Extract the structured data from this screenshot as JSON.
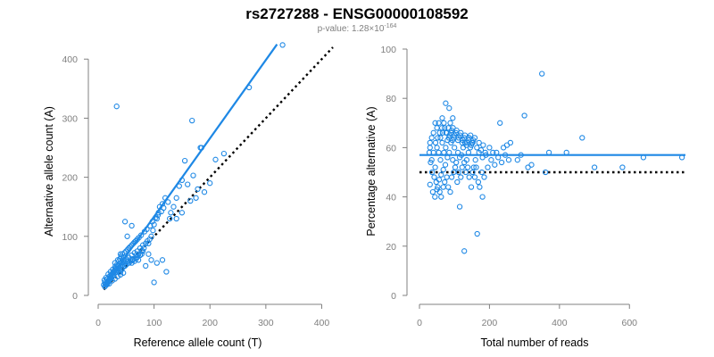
{
  "header": {
    "title": "rs2727288 - ENSG00000108592",
    "pvalue_prefix": "p-value: 1.28×10",
    "pvalue_exponent": "-164"
  },
  "chart_data": [
    {
      "id": "allele-counts",
      "type": "scatter",
      "xlabel": "Reference allele count (T)",
      "ylabel": "Alternative allele count (A)",
      "xlim": [
        0,
        420
      ],
      "ylim": [
        0,
        420
      ],
      "xticks": [
        "0",
        "100",
        "200",
        "300",
        "400"
      ],
      "yticks": [
        "0",
        "100",
        "200",
        "300",
        "400"
      ],
      "color": "#1e88e5",
      "fit_line": {
        "from": [
          10,
          14
        ],
        "to": [
          320,
          425
        ]
      },
      "reference_line": {
        "from": [
          10,
          10
        ],
        "to": [
          420,
          420
        ]
      },
      "points": [
        [
          33,
          320
        ],
        [
          168,
          296
        ],
        [
          270,
          352
        ],
        [
          330,
          424
        ],
        [
          183,
          250
        ],
        [
          185,
          250
        ],
        [
          155,
          228
        ],
        [
          170,
          203
        ],
        [
          160,
          188
        ],
        [
          178,
          180
        ],
        [
          150,
          195
        ],
        [
          145,
          185
        ],
        [
          140,
          165
        ],
        [
          135,
          150
        ],
        [
          130,
          140
        ],
        [
          128,
          130
        ],
        [
          120,
          165
        ],
        [
          115,
          155
        ],
        [
          110,
          150
        ],
        [
          108,
          140
        ],
        [
          105,
          130
        ],
        [
          100,
          120
        ],
        [
          98,
          110
        ],
        [
          95,
          100
        ],
        [
          92,
          95
        ],
        [
          90,
          88
        ],
        [
          88,
          92
        ],
        [
          85,
          88
        ],
        [
          82,
          80
        ],
        [
          80,
          85
        ],
        [
          78,
          76
        ],
        [
          75,
          80
        ],
        [
          72,
          70
        ],
        [
          70,
          75
        ],
        [
          68,
          68
        ],
        [
          65,
          72
        ],
        [
          62,
          62
        ],
        [
          60,
          68
        ],
        [
          58,
          60
        ],
        [
          55,
          64
        ],
        [
          52,
          58
        ],
        [
          50,
          62
        ],
        [
          48,
          55
        ],
        [
          46,
          60
        ],
        [
          44,
          52
        ],
        [
          42,
          56
        ],
        [
          40,
          50
        ],
        [
          38,
          54
        ],
        [
          36,
          46
        ],
        [
          34,
          50
        ],
        [
          32,
          44
        ],
        [
          30,
          48
        ],
        [
          28,
          40
        ],
        [
          26,
          44
        ],
        [
          24,
          36
        ],
        [
          22,
          40
        ],
        [
          20,
          32
        ],
        [
          18,
          36
        ],
        [
          16,
          28
        ],
        [
          14,
          30
        ],
        [
          12,
          22
        ],
        [
          11,
          26
        ],
        [
          10,
          18
        ],
        [
          12,
          15
        ],
        [
          14,
          18
        ],
        [
          16,
          20
        ],
        [
          18,
          22
        ],
        [
          20,
          25
        ],
        [
          22,
          28
        ],
        [
          24,
          30
        ],
        [
          26,
          33
        ],
        [
          28,
          35
        ],
        [
          30,
          38
        ],
        [
          32,
          40
        ],
        [
          35,
          42
        ],
        [
          38,
          45
        ],
        [
          40,
          40
        ],
        [
          42,
          44
        ],
        [
          45,
          48
        ],
        [
          48,
          50
        ],
        [
          50,
          52
        ],
        [
          55,
          55
        ],
        [
          58,
          58
        ],
        [
          60,
          55
        ],
        [
          62,
          60
        ],
        [
          65,
          58
        ],
        [
          68,
          62
        ],
        [
          70,
          65
        ],
        [
          72,
          60
        ],
        [
          75,
          68
        ],
        [
          78,
          70
        ],
        [
          80,
          75
        ],
        [
          45,
          65
        ],
        [
          50,
          75
        ],
        [
          55,
          80
        ],
        [
          60,
          85
        ],
        [
          65,
          90
        ],
        [
          70,
          95
        ],
        [
          35,
          60
        ],
        [
          40,
          70
        ],
        [
          30,
          55
        ],
        [
          48,
          125
        ],
        [
          60,
          118
        ],
        [
          52,
          100
        ],
        [
          100,
          22
        ],
        [
          122,
          40
        ],
        [
          105,
          55
        ],
        [
          115,
          60
        ],
        [
          95,
          60
        ],
        [
          90,
          70
        ],
        [
          85,
          50
        ],
        [
          25,
          25
        ],
        [
          30,
          28
        ],
        [
          35,
          32
        ],
        [
          40,
          35
        ],
        [
          45,
          38
        ],
        [
          20,
          20
        ],
        [
          15,
          18
        ],
        [
          13,
          20
        ],
        [
          17,
          24
        ],
        [
          19,
          26
        ],
        [
          21,
          30
        ],
        [
          23,
          34
        ],
        [
          27,
          38
        ],
        [
          29,
          42
        ],
        [
          31,
          46
        ],
        [
          33,
          52
        ],
        [
          37,
          58
        ],
        [
          39,
          62
        ],
        [
          41,
          66
        ],
        [
          43,
          70
        ],
        [
          47,
          72
        ],
        [
          53,
          78
        ],
        [
          57,
          82
        ],
        [
          63,
          88
        ],
        [
          67,
          92
        ],
        [
          73,
          98
        ],
        [
          77,
          102
        ],
        [
          83,
          108
        ],
        [
          87,
          112
        ],
        [
          93,
          118
        ],
        [
          97,
          125
        ],
        [
          103,
          132
        ],
        [
          107,
          136
        ],
        [
          113,
          142
        ],
        [
          117,
          148
        ],
        [
          125,
          158
        ],
        [
          210,
          230
        ],
        [
          225,
          240
        ],
        [
          200,
          190
        ],
        [
          190,
          175
        ],
        [
          175,
          165
        ],
        [
          165,
          160
        ],
        [
          150,
          140
        ],
        [
          140,
          130
        ]
      ]
    },
    {
      "id": "percentage",
      "type": "scatter",
      "xlabel": "Total number of reads",
      "ylabel": "Percentage alternative (A)",
      "xlim": [
        0,
        760
      ],
      "ylim": [
        0,
        100
      ],
      "xticks": [
        "0",
        "200",
        "400",
        "600"
      ],
      "yticks": [
        "0",
        "20",
        "40",
        "60",
        "80",
        "100"
      ],
      "color": "#1e88e5",
      "fit_line": {
        "from": [
          0,
          57
        ],
        "to": [
          760,
          57
        ]
      },
      "reference_line": {
        "from": [
          0,
          50
        ],
        "to": [
          760,
          50
        ]
      },
      "points": [
        [
          350,
          90
        ],
        [
          128,
          18
        ],
        [
          165,
          25
        ],
        [
          115,
          36
        ],
        [
          180,
          40
        ],
        [
          300,
          73
        ],
        [
          230,
          70
        ],
        [
          370,
          58
        ],
        [
          465,
          64
        ],
        [
          750,
          56
        ],
        [
          640,
          56
        ],
        [
          580,
          52
        ],
        [
          500,
          52
        ],
        [
          420,
          58
        ],
        [
          360,
          50
        ],
        [
          320,
          53
        ],
        [
          310,
          52
        ],
        [
          290,
          57
        ],
        [
          280,
          55
        ],
        [
          260,
          62
        ],
        [
          250,
          61
        ],
        [
          240,
          60
        ],
        [
          220,
          58
        ],
        [
          210,
          58
        ],
        [
          200,
          60
        ],
        [
          190,
          57
        ],
        [
          180,
          56
        ],
        [
          170,
          58
        ],
        [
          160,
          55
        ],
        [
          155,
          52
        ],
        [
          150,
          62
        ],
        [
          145,
          60
        ],
        [
          140,
          58
        ],
        [
          135,
          55
        ],
        [
          130,
          62
        ],
        [
          125,
          60
        ],
        [
          120,
          57
        ],
        [
          115,
          56
        ],
        [
          110,
          58
        ],
        [
          105,
          54
        ],
        [
          100,
          60
        ],
        [
          95,
          55
        ],
        [
          90,
          62
        ],
        [
          85,
          58
        ],
        [
          80,
          56
        ],
        [
          75,
          60
        ],
        [
          70,
          58
        ],
        [
          65,
          62
        ],
        [
          60,
          55
        ],
        [
          55,
          58
        ],
        [
          50,
          60
        ],
        [
          45,
          52
        ],
        [
          40,
          58
        ],
        [
          35,
          55
        ],
        [
          30,
          60
        ],
        [
          75,
          78
        ],
        [
          85,
          76
        ],
        [
          95,
          72
        ],
        [
          65,
          72
        ],
        [
          55,
          70
        ],
        [
          50,
          68
        ],
        [
          45,
          70
        ],
        [
          40,
          66
        ],
        [
          35,
          64
        ],
        [
          30,
          62
        ],
        [
          28,
          58
        ],
        [
          32,
          54
        ],
        [
          36,
          50
        ],
        [
          42,
          48
        ],
        [
          48,
          46
        ],
        [
          52,
          44
        ],
        [
          58,
          42
        ],
        [
          62,
          40
        ],
        [
          68,
          44
        ],
        [
          72,
          46
        ],
        [
          78,
          48
        ],
        [
          82,
          44
        ],
        [
          88,
          42
        ],
        [
          92,
          48
        ],
        [
          98,
          50
        ],
        [
          102,
          52
        ],
        [
          108,
          46
        ],
        [
          112,
          50
        ],
        [
          118,
          48
        ],
        [
          122,
          52
        ],
        [
          128,
          54
        ],
        [
          132,
          50
        ],
        [
          138,
          52
        ],
        [
          142,
          48
        ],
        [
          148,
          44
        ],
        [
          152,
          50
        ],
        [
          158,
          48
        ],
        [
          162,
          52
        ],
        [
          168,
          46
        ],
        [
          172,
          44
        ],
        [
          178,
          50
        ],
        [
          185,
          48
        ],
        [
          195,
          52
        ],
        [
          205,
          55
        ],
        [
          215,
          53
        ],
        [
          225,
          56
        ],
        [
          235,
          54
        ],
        [
          245,
          57
        ],
        [
          255,
          55
        ],
        [
          30,
          45
        ],
        [
          38,
          42
        ],
        [
          44,
          40
        ],
        [
          50,
          43
        ],
        [
          56,
          47
        ],
        [
          62,
          49
        ],
        [
          68,
          51
        ],
        [
          74,
          53
        ],
        [
          80,
          63
        ],
        [
          86,
          65
        ],
        [
          92,
          67
        ],
        [
          98,
          64
        ],
        [
          104,
          66
        ],
        [
          110,
          63
        ],
        [
          116,
          65
        ],
        [
          122,
          62
        ],
        [
          128,
          64
        ],
        [
          134,
          61
        ],
        [
          140,
          63
        ],
        [
          146,
          65
        ],
        [
          152,
          62
        ],
        [
          158,
          64
        ],
        [
          164,
          60
        ],
        [
          170,
          62
        ],
        [
          176,
          59
        ],
        [
          182,
          61
        ],
        [
          188,
          58
        ],
        [
          60,
          64
        ],
        [
          66,
          66
        ],
        [
          72,
          68
        ],
        [
          78,
          66
        ],
        [
          84,
          64
        ],
        [
          90,
          66
        ],
        [
          96,
          68
        ],
        [
          46,
          62
        ],
        [
          52,
          64
        ],
        [
          58,
          66
        ],
        [
          64,
          68
        ],
        [
          70,
          70
        ],
        [
          76,
          66
        ],
        [
          82,
          68
        ],
        [
          88,
          70
        ],
        [
          94,
          63
        ],
        [
          100,
          65
        ],
        [
          106,
          67
        ],
        [
          112,
          64
        ],
        [
          118,
          66
        ],
        [
          124,
          63
        ],
        [
          130,
          65
        ],
        [
          136,
          62
        ],
        [
          142,
          64
        ],
        [
          148,
          61
        ],
        [
          154,
          63
        ]
      ]
    }
  ]
}
